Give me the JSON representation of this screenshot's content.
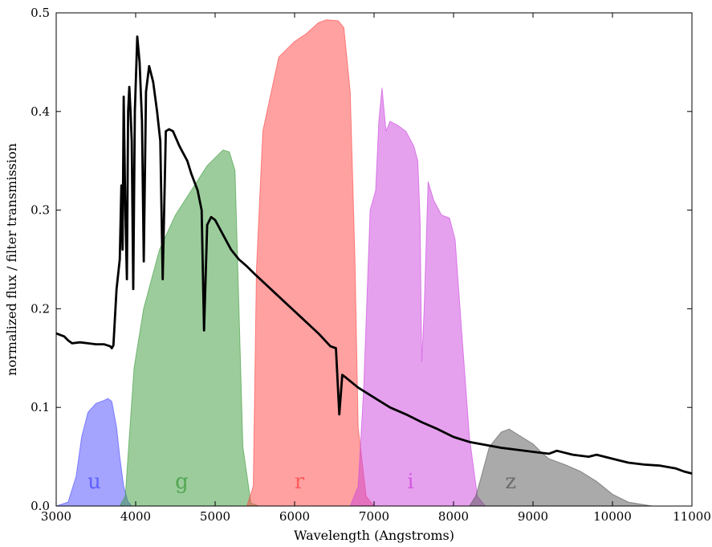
{
  "chart_data": {
    "type": "area",
    "xlabel": "Wavelength (Angstroms)",
    "ylabel": "normalized flux / filter transmission",
    "xlim": [
      3000,
      11000
    ],
    "ylim": [
      0,
      0.5
    ],
    "xticks": [
      3000,
      4000,
      5000,
      6000,
      7000,
      8000,
      9000,
      10000,
      11000
    ],
    "xtick_labels": [
      "3000",
      "4000",
      "5000",
      "6000",
      "7000",
      "8000",
      "9000",
      "10000",
      "11000"
    ],
    "yticks": [
      0,
      0.1,
      0.2,
      0.3,
      0.4,
      0.5
    ],
    "ytick_labels": [
      "0.0",
      "0.1",
      "0.2",
      "0.3",
      "0.4",
      "0.5"
    ],
    "grid": false,
    "filters": [
      {
        "name": "u",
        "color": "#4a4aff",
        "label_at": [
          3480,
          0.018
        ],
        "points": [
          [
            3000,
            0
          ],
          [
            3150,
            0.004
          ],
          [
            3250,
            0.03
          ],
          [
            3320,
            0.07
          ],
          [
            3400,
            0.095
          ],
          [
            3500,
            0.104
          ],
          [
            3600,
            0.107
          ],
          [
            3650,
            0.109
          ],
          [
            3700,
            0.106
          ],
          [
            3760,
            0.08
          ],
          [
            3800,
            0.05
          ],
          [
            3850,
            0.02
          ],
          [
            3900,
            0.005
          ],
          [
            3950,
            0
          ]
        ]
      },
      {
        "name": "g",
        "color": "#3a9a3a",
        "label_at": [
          4580,
          0.018
        ],
        "points": [
          [
            3800,
            0
          ],
          [
            3870,
            0.01
          ],
          [
            3920,
            0.07
          ],
          [
            3980,
            0.14
          ],
          [
            4100,
            0.2
          ],
          [
            4300,
            0.26
          ],
          [
            4500,
            0.295
          ],
          [
            4700,
            0.32
          ],
          [
            4900,
            0.345
          ],
          [
            5100,
            0.361
          ],
          [
            5180,
            0.359
          ],
          [
            5250,
            0.34
          ],
          [
            5300,
            0.2
          ],
          [
            5350,
            0.06
          ],
          [
            5450,
            0.003
          ],
          [
            5550,
            0
          ]
        ]
      },
      {
        "name": "r",
        "color": "#ff4444",
        "label_at": [
          6060,
          0.018
        ],
        "points": [
          [
            5400,
            0
          ],
          [
            5480,
            0.02
          ],
          [
            5520,
            0.24
          ],
          [
            5600,
            0.38
          ],
          [
            5800,
            0.455
          ],
          [
            6000,
            0.471
          ],
          [
            6150,
            0.479
          ],
          [
            6300,
            0.49
          ],
          [
            6400,
            0.493
          ],
          [
            6550,
            0.492
          ],
          [
            6620,
            0.485
          ],
          [
            6700,
            0.42
          ],
          [
            6760,
            0.25
          ],
          [
            6800,
            0.08
          ],
          [
            6900,
            0.01
          ],
          [
            7000,
            0
          ]
        ]
      },
      {
        "name": "i",
        "color": "#cc44dd",
        "label_at": [
          7460,
          0.018
        ],
        "points": [
          [
            6700,
            0
          ],
          [
            6800,
            0.02
          ],
          [
            6870,
            0.12
          ],
          [
            6950,
            0.3
          ],
          [
            7020,
            0.32
          ],
          [
            7060,
            0.39
          ],
          [
            7100,
            0.424
          ],
          [
            7150,
            0.38
          ],
          [
            7200,
            0.39
          ],
          [
            7300,
            0.386
          ],
          [
            7400,
            0.38
          ],
          [
            7500,
            0.365
          ],
          [
            7550,
            0.35
          ],
          [
            7580,
            0.29
          ],
          [
            7600,
            0.146
          ],
          [
            7630,
            0.2
          ],
          [
            7680,
            0.329
          ],
          [
            7750,
            0.31
          ],
          [
            7850,
            0.295
          ],
          [
            7950,
            0.292
          ],
          [
            8020,
            0.27
          ],
          [
            8100,
            0.18
          ],
          [
            8200,
            0.07
          ],
          [
            8300,
            0.01
          ],
          [
            8400,
            0
          ]
        ]
      },
      {
        "name": "z",
        "color": "#555555",
        "label_at": [
          8720,
          0.018
        ],
        "points": [
          [
            8200,
            0
          ],
          [
            8280,
            0.01
          ],
          [
            8350,
            0.03
          ],
          [
            8450,
            0.06
          ],
          [
            8600,
            0.075
          ],
          [
            8700,
            0.078
          ],
          [
            8800,
            0.073
          ],
          [
            8900,
            0.068
          ],
          [
            9000,
            0.063
          ],
          [
            9100,
            0.055
          ],
          [
            9200,
            0.048
          ],
          [
            9400,
            0.042
          ],
          [
            9600,
            0.035
          ],
          [
            9800,
            0.025
          ],
          [
            10000,
            0.012
          ],
          [
            10200,
            0.004
          ],
          [
            10500,
            0
          ]
        ]
      }
    ],
    "spectrum": {
      "color": "#000000",
      "points": [
        [
          3000,
          0.175
        ],
        [
          3100,
          0.172
        ],
        [
          3150,
          0.168
        ],
        [
          3200,
          0.165
        ],
        [
          3300,
          0.166
        ],
        [
          3400,
          0.165
        ],
        [
          3500,
          0.164
        ],
        [
          3600,
          0.164
        ],
        [
          3680,
          0.162
        ],
        [
          3700,
          0.16
        ],
        [
          3720,
          0.163
        ],
        [
          3760,
          0.22
        ],
        [
          3800,
          0.25
        ],
        [
          3820,
          0.325
        ],
        [
          3835,
          0.26
        ],
        [
          3850,
          0.415
        ],
        [
          3870,
          0.3
        ],
        [
          3890,
          0.23
        ],
        [
          3905,
          0.4
        ],
        [
          3920,
          0.425
        ],
        [
          3935,
          0.4
        ],
        [
          3950,
          0.37
        ],
        [
          3970,
          0.22
        ],
        [
          3990,
          0.4
        ],
        [
          4020,
          0.476
        ],
        [
          4050,
          0.45
        ],
        [
          4080,
          0.39
        ],
        [
          4102,
          0.248
        ],
        [
          4130,
          0.42
        ],
        [
          4170,
          0.446
        ],
        [
          4220,
          0.43
        ],
        [
          4270,
          0.4
        ],
        [
          4310,
          0.37
        ],
        [
          4340,
          0.23
        ],
        [
          4380,
          0.38
        ],
        [
          4420,
          0.382
        ],
        [
          4470,
          0.38
        ],
        [
          4550,
          0.365
        ],
        [
          4650,
          0.35
        ],
        [
          4700,
          0.337
        ],
        [
          4780,
          0.32
        ],
        [
          4830,
          0.3
        ],
        [
          4861,
          0.178
        ],
        [
          4900,
          0.285
        ],
        [
          4950,
          0.293
        ],
        [
          5000,
          0.29
        ],
        [
          5100,
          0.275
        ],
        [
          5200,
          0.26
        ],
        [
          5300,
          0.25
        ],
        [
          5400,
          0.243
        ],
        [
          5500,
          0.235
        ],
        [
          5700,
          0.22
        ],
        [
          5900,
          0.205
        ],
        [
          6100,
          0.19
        ],
        [
          6300,
          0.175
        ],
        [
          6450,
          0.162
        ],
        [
          6520,
          0.16
        ],
        [
          6563,
          0.093
        ],
        [
          6600,
          0.133
        ],
        [
          6650,
          0.13
        ],
        [
          6800,
          0.12
        ],
        [
          7000,
          0.11
        ],
        [
          7200,
          0.1
        ],
        [
          7400,
          0.093
        ],
        [
          7600,
          0.085
        ],
        [
          7800,
          0.078
        ],
        [
          8000,
          0.07
        ],
        [
          8200,
          0.065
        ],
        [
          8400,
          0.062
        ],
        [
          8600,
          0.059
        ],
        [
          8800,
          0.057
        ],
        [
          9000,
          0.055
        ],
        [
          9200,
          0.053
        ],
        [
          9300,
          0.056
        ],
        [
          9500,
          0.052
        ],
        [
          9700,
          0.05
        ],
        [
          9800,
          0.052
        ],
        [
          10000,
          0.048
        ],
        [
          10200,
          0.044
        ],
        [
          10400,
          0.042
        ],
        [
          10600,
          0.041
        ],
        [
          10800,
          0.038
        ],
        [
          10900,
          0.035
        ],
        [
          11000,
          0.033
        ]
      ]
    }
  }
}
